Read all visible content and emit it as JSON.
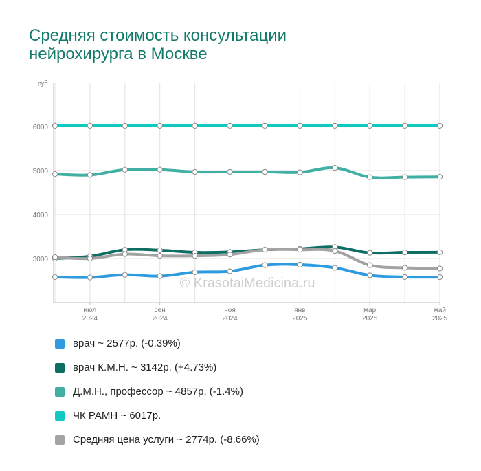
{
  "title_lines": [
    "Средняя стоимость консультации",
    "нейрохирурга в Москве"
  ],
  "watermark": "© KrasotaiMedicina.ru",
  "chart_data": {
    "type": "line",
    "title": "Средняя стоимость консультации нейрохирурга в Москве",
    "ylabel": "руб.",
    "ylim": [
      2000,
      7000
    ],
    "yticks": [
      3000,
      4000,
      5000,
      6000
    ],
    "grid": true,
    "legend_position": "bottom",
    "x": [
      0,
      1,
      2,
      3,
      4,
      5,
      6,
      7,
      8,
      9,
      10,
      11
    ],
    "xtick_labels": [
      {
        "month": "июл",
        "year": "2024"
      },
      {
        "month": "сен",
        "year": "2024"
      },
      {
        "month": "ноя",
        "year": "2024"
      },
      {
        "month": "янв",
        "year": "2025"
      },
      {
        "month": "мар",
        "year": "2025"
      },
      {
        "month": "май",
        "year": "2025"
      }
    ],
    "series": [
      {
        "name": "врач",
        "legend": "врач ~ 2577р. (-0.39%)",
        "color": "#2e9be0",
        "values": [
          2580,
          2570,
          2630,
          2600,
          2690,
          2710,
          2850,
          2860,
          2790,
          2620,
          2580,
          2577
        ]
      },
      {
        "name": "врач К.М.Н.",
        "legend": "врач К.М.Н. ~ 3142р. (+4.73%)",
        "color": "#0e6e63",
        "values": [
          3000,
          3050,
          3200,
          3190,
          3140,
          3150,
          3200,
          3220,
          3260,
          3130,
          3140,
          3142
        ]
      },
      {
        "name": "Д.М.Н., профессор",
        "legend": "Д.М.Н., профессор ~ 4857р. (-1.4%)",
        "color": "#3fb0a3",
        "values": [
          4920,
          4900,
          5020,
          5020,
          4970,
          4970,
          4970,
          4960,
          5060,
          4850,
          4850,
          4857
        ]
      },
      {
        "name": "ЧК РАМН",
        "legend": "ЧК РАМН ~ 6017р.",
        "color": "#12c9c1",
        "values": [
          6017,
          6017,
          6017,
          6017,
          6017,
          6017,
          6017,
          6017,
          6017,
          6017,
          6017,
          6017
        ]
      },
      {
        "name": "Средняя цена услуги",
        "legend": "Средняя цена услуги ~ 2774р. (-8.66%)",
        "color": "#a3a3a3",
        "values": [
          3030,
          3000,
          3100,
          3060,
          3060,
          3090,
          3200,
          3200,
          3170,
          2850,
          2790,
          2774
        ]
      }
    ]
  }
}
